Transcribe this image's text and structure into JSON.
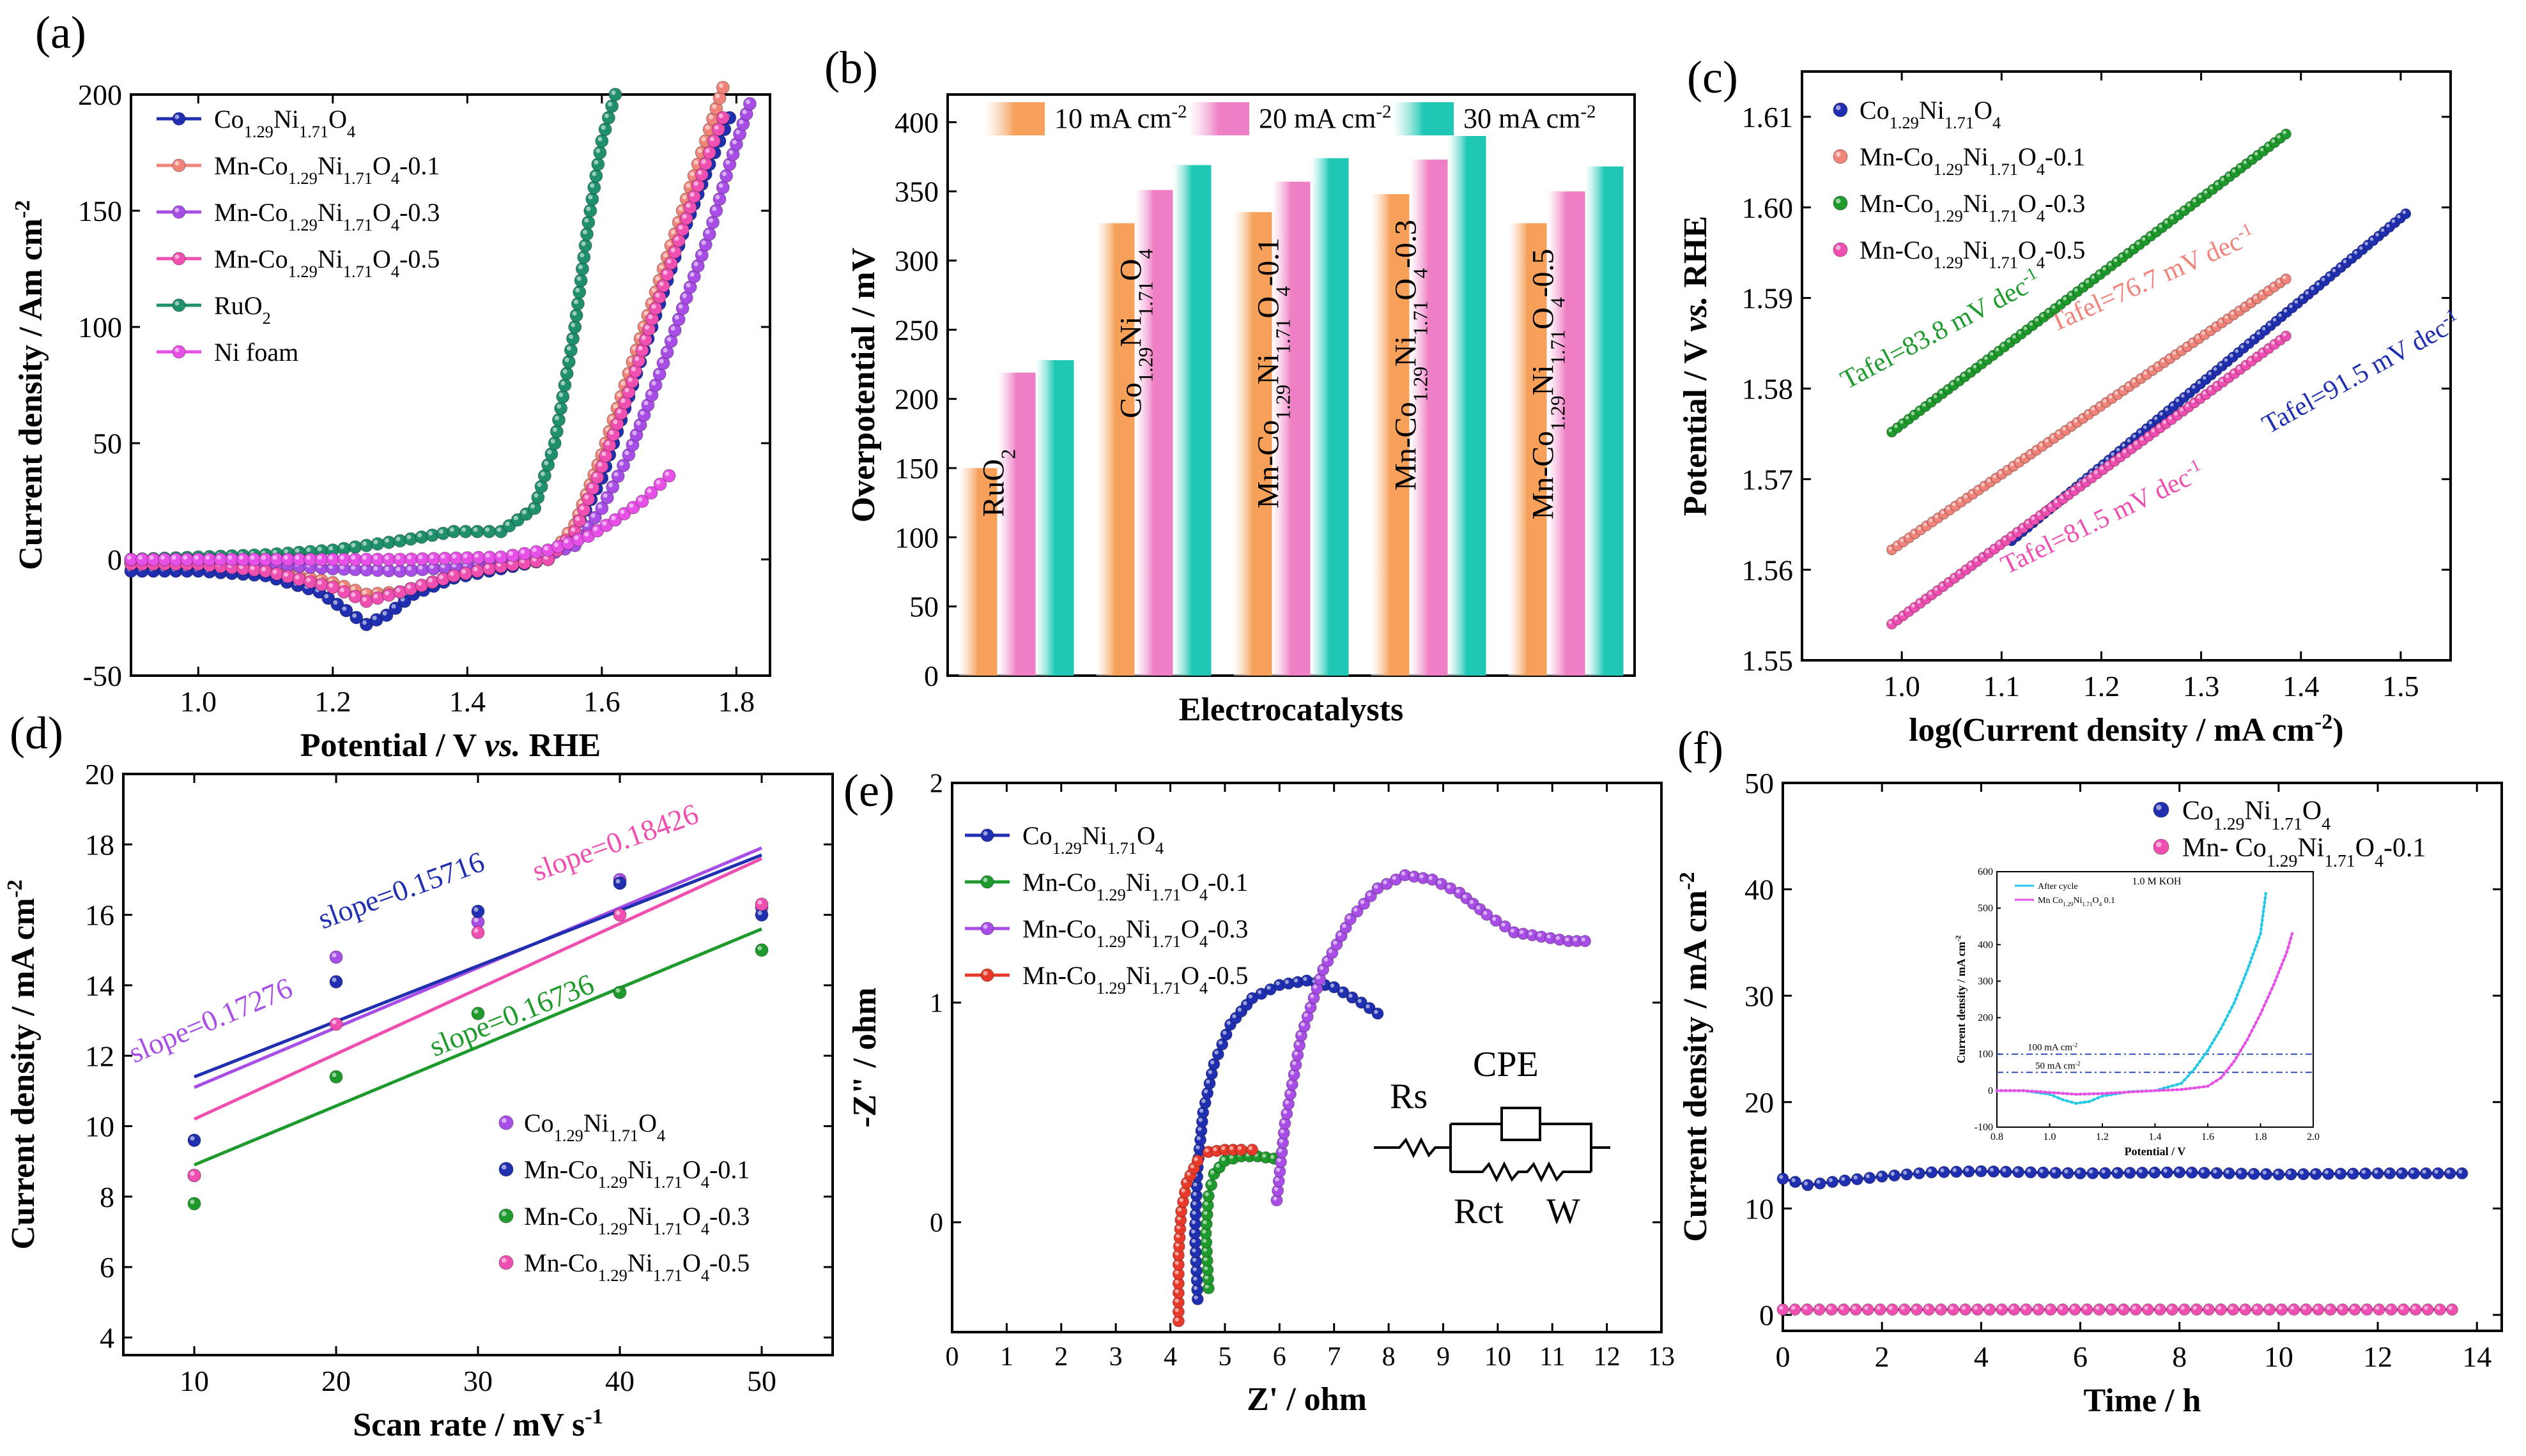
{
  "figure": {
    "panel_labels": [
      "(a)",
      "(b)",
      "(c)",
      "(d)",
      "(e)",
      "(f)"
    ]
  },
  "colors": {
    "navy": "#1f2fb0",
    "salmon": "#f0837a",
    "violet": "#a84ee6",
    "pink": "#ee4fb0",
    "teal": "#1f8f6e",
    "magenta": "#e650e6",
    "green": "#1e9a2c",
    "red": "#e83a2a",
    "cyan": "#25c9e6",
    "bar10": "#f6a05a",
    "bar20": "#ef7fc4",
    "bar30": "#1ec8b4"
  },
  "chart_data": [
    {
      "id": "a",
      "type": "line",
      "title": "(a)",
      "xlabel": "Potential / V vs. RHE",
      "ylabel": "Current density / Am cm-2",
      "xlim": [
        0.9,
        1.85
      ],
      "ylim": [
        -50,
        200
      ],
      "xticks": [
        1.0,
        1.2,
        1.4,
        1.6,
        1.8
      ],
      "yticks": [
        -50,
        0,
        50,
        100,
        150,
        200
      ],
      "legend_position": "top-left",
      "series": [
        {
          "name": "Co1.29Ni1.71O4",
          "color": "navy",
          "x": [
            0.9,
            1.0,
            1.1,
            1.18,
            1.22,
            1.25,
            1.28,
            1.32,
            1.38,
            1.45,
            1.52,
            1.56,
            1.6,
            1.64,
            1.68,
            1.72,
            1.76,
            1.79
          ],
          "y": [
            -5,
            -5,
            -7,
            -14,
            -22,
            -28,
            -24,
            -15,
            -8,
            -4,
            0,
            12,
            35,
            70,
            105,
            140,
            170,
            190
          ]
        },
        {
          "name": "Mn-Co1.29Ni1.71O4-0.1",
          "color": "salmon",
          "x": [
            0.9,
            1.0,
            1.1,
            1.2,
            1.25,
            1.3,
            1.38,
            1.45,
            1.52,
            1.56,
            1.6,
            1.64,
            1.68,
            1.72,
            1.76,
            1.78
          ],
          "y": [
            -2,
            -2,
            -4,
            -10,
            -15,
            -14,
            -7,
            -3,
            0,
            15,
            45,
            80,
            115,
            150,
            185,
            203
          ]
        },
        {
          "name": "Mn-Co1.29Ni1.71O4-0.3",
          "color": "violet",
          "x": [
            0.9,
            1.0,
            1.1,
            1.2,
            1.3,
            1.4,
            1.5,
            1.56,
            1.6,
            1.64,
            1.68,
            1.72,
            1.76,
            1.79,
            1.82
          ],
          "y": [
            -1,
            -1,
            -2,
            -4,
            -5,
            -3,
            0,
            6,
            22,
            45,
            75,
            108,
            140,
            170,
            196
          ]
        },
        {
          "name": "Mn-Co1.29Ni1.71O4-0.5",
          "color": "pink",
          "x": [
            0.9,
            1.0,
            1.1,
            1.2,
            1.25,
            1.3,
            1.38,
            1.45,
            1.52,
            1.56,
            1.6,
            1.64,
            1.68,
            1.72,
            1.76,
            1.78
          ],
          "y": [
            -2,
            -2,
            -5,
            -12,
            -18,
            -14,
            -7,
            -3,
            0,
            12,
            40,
            72,
            108,
            142,
            175,
            190
          ]
        },
        {
          "name": "RuO2",
          "color": "teal",
          "x": [
            0.9,
            1.0,
            1.1,
            1.2,
            1.3,
            1.38,
            1.45,
            1.5,
            1.53,
            1.56,
            1.58,
            1.6,
            1.62
          ],
          "y": [
            0,
            1,
            2,
            4,
            8,
            12,
            12,
            22,
            50,
            100,
            145,
            180,
            200
          ]
        },
        {
          "name": "Ni foam",
          "color": "magenta",
          "x": [
            0.9,
            1.1,
            1.3,
            1.45,
            1.52,
            1.58,
            1.62,
            1.66,
            1.7
          ],
          "y": [
            0,
            0,
            0,
            1,
            4,
            10,
            17,
            25,
            36
          ]
        }
      ]
    },
    {
      "id": "b",
      "type": "bar",
      "title": "(b)",
      "xlabel": "Electrocatalysts",
      "ylabel": "Overpotential / mV",
      "ylim": [
        0,
        420
      ],
      "yticks": [
        0,
        50,
        100,
        150,
        200,
        250,
        300,
        350,
        400
      ],
      "categories": [
        "RuO2",
        "Co1.29Ni1.71O4",
        "Mn-Co1.29Ni1.71O4-0.1",
        "Mn-Co1.29Ni1.71O4-0.3",
        "Mn-Co1.29Ni1.71O4-0.5"
      ],
      "legend_position": "top",
      "series": [
        {
          "name": "10 mA cm-2",
          "color": "bar10",
          "values": [
            150,
            327,
            335,
            348,
            327
          ]
        },
        {
          "name": "20 mA cm-2",
          "color": "bar20",
          "values": [
            219,
            351,
            357,
            373,
            350
          ]
        },
        {
          "name": "30 mA cm-2",
          "color": "bar30",
          "values": [
            228,
            369,
            374,
            390,
            368
          ]
        }
      ]
    },
    {
      "id": "c",
      "type": "scatter",
      "title": "(c)",
      "xlabel": "log(Current density / mA cm-2)",
      "ylabel": "Potential / V vs. RHE",
      "xlim": [
        0.9,
        1.55
      ],
      "ylim": [
        1.55,
        1.615
      ],
      "xticks": [
        1.0,
        1.1,
        1.2,
        1.3,
        1.4,
        1.5
      ],
      "yticks": [
        1.55,
        1.56,
        1.57,
        1.58,
        1.59,
        1.6,
        1.61
      ],
      "legend_position": "top-left",
      "series": [
        {
          "name": "Co1.29Ni1.71O4",
          "color": "navy",
          "x": [
            1.11,
            1.505
          ],
          "y": [
            1.5632,
            1.5993
          ],
          "tafel": "Tafel=91.5 mV dec-1"
        },
        {
          "name": "Mn-Co1.29Ni1.71O4-0.1",
          "color": "salmon",
          "x": [
            0.99,
            1.385
          ],
          "y": [
            1.5622,
            1.5921
          ],
          "tafel": "Tafel=76.7 mV dec-1"
        },
        {
          "name": "Mn-Co1.29Ni1.71O4-0.3",
          "color": "green",
          "x": [
            0.99,
            1.385
          ],
          "y": [
            1.5752,
            1.6081
          ],
          "tafel": "Tafel=83.8 mV dec-1"
        },
        {
          "name": "Mn-Co1.29Ni1.71O4-0.5",
          "color": "pink",
          "x": [
            0.99,
            1.385
          ],
          "y": [
            1.554,
            1.5858
          ],
          "tafel": "Tafel=81.5 mV dec-1"
        }
      ]
    },
    {
      "id": "d",
      "type": "scatter",
      "title": "(d)",
      "xlabel": "Scan rate / mV s-1",
      "ylabel": "Current density / mA cm-2",
      "xlim": [
        5,
        55
      ],
      "ylim": [
        3.5,
        20
      ],
      "xticks": [
        10,
        20,
        30,
        40,
        50
      ],
      "yticks": [
        4,
        6,
        8,
        10,
        12,
        14,
        16,
        18,
        20
      ],
      "legend_position": "bottom-right",
      "series": [
        {
          "name": "Co1.29Ni1.71O4",
          "color": "violet",
          "x": [
            10,
            20,
            30,
            40,
            50
          ],
          "y": [
            8.6,
            14.8,
            15.8,
            17.0,
            16.2
          ],
          "fit": [
            11.1,
            17.9
          ],
          "slope": "slope=0.17276"
        },
        {
          "name": "Mn-Co1.29Ni1.71O4-0.1",
          "color": "navy",
          "x": [
            10,
            20,
            30,
            40,
            50
          ],
          "y": [
            9.6,
            14.1,
            16.1,
            16.9,
            16.0
          ],
          "fit": [
            11.4,
            17.7
          ],
          "slope": "slope=0.15716"
        },
        {
          "name": "Mn-Co1.29Ni1.71O4-0.3",
          "color": "green",
          "x": [
            10,
            20,
            30,
            40,
            50
          ],
          "y": [
            7.8,
            11.4,
            13.2,
            13.8,
            15.0
          ],
          "fit": [
            8.9,
            15.6
          ],
          "slope": "slope=0.16736"
        },
        {
          "name": "Mn-Co1.29Ni1.71O4-0.5",
          "color": "pink",
          "x": [
            10,
            20,
            30,
            40,
            50
          ],
          "y": [
            8.6,
            12.9,
            15.5,
            16.0,
            16.3
          ],
          "fit": [
            10.2,
            17.6
          ],
          "slope": "slope=0.18426"
        }
      ]
    },
    {
      "id": "e",
      "type": "line",
      "title": "(e)",
      "xlabel": "Z' / ohm",
      "ylabel": "-Z\" / ohm",
      "xlim": [
        0,
        13
      ],
      "ylim": [
        -0.5,
        2
      ],
      "xticks": [
        0,
        1,
        2,
        3,
        4,
        5,
        6,
        7,
        8,
        9,
        10,
        11,
        12,
        13
      ],
      "yticks": [
        0,
        1,
        2
      ],
      "legend_position": "top-left",
      "circuit": {
        "labels": [
          "Rs",
          "CPE",
          "Rct",
          "W"
        ]
      },
      "series": [
        {
          "name": "Co1.29Ni1.71O4",
          "color": "navy",
          "x": [
            4.5,
            4.45,
            4.5,
            4.6,
            4.8,
            5.1,
            5.5,
            6.0,
            6.5,
            7.0,
            7.5,
            7.8
          ],
          "y": [
            -0.35,
            -0.05,
            0.25,
            0.5,
            0.72,
            0.9,
            1.02,
            1.08,
            1.1,
            1.07,
            1.0,
            0.95
          ]
        },
        {
          "name": "Mn-Co1.29Ni1.71O4-0.1",
          "color": "green",
          "x": [
            4.7,
            4.65,
            4.7,
            4.8,
            5.0,
            5.3,
            5.6,
            5.9
          ],
          "y": [
            -0.3,
            -0.05,
            0.12,
            0.22,
            0.28,
            0.3,
            0.3,
            0.29
          ]
        },
        {
          "name": "Mn-Co1.29Ni1.71O4-0.3",
          "color": "violet",
          "x": [
            5.95,
            6.1,
            6.4,
            6.8,
            7.3,
            7.8,
            8.3,
            8.8,
            9.3,
            9.8,
            10.3,
            10.8,
            11.3,
            11.6
          ],
          "y": [
            0.1,
            0.45,
            0.85,
            1.15,
            1.38,
            1.52,
            1.58,
            1.56,
            1.5,
            1.4,
            1.32,
            1.3,
            1.28,
            1.28
          ]
        },
        {
          "name": "Mn-Co1.29Ni1.71O4-0.5",
          "color": "red",
          "x": [
            4.15,
            4.15,
            4.2,
            4.3,
            4.5,
            4.7,
            5.0,
            5.3,
            5.5
          ],
          "y": [
            -0.45,
            -0.15,
            0.05,
            0.18,
            0.28,
            0.32,
            0.33,
            0.33,
            0.33
          ]
        }
      ]
    },
    {
      "id": "f",
      "type": "line",
      "title": "(f)",
      "xlabel": "Time / h",
      "ylabel": "Current density / mA cm-2",
      "xlim": [
        0,
        14.5
      ],
      "ylim": [
        -1.5,
        50
      ],
      "xticks": [
        0,
        2,
        4,
        6,
        8,
        10,
        12,
        14
      ],
      "yticks": [
        0,
        10,
        20,
        30,
        40,
        50
      ],
      "legend_position": "top-right",
      "series": [
        {
          "name": "Co1.29Ni1.71O4",
          "color": "navy",
          "x": [
            0,
            0.5,
            1,
            2,
            3,
            4,
            6,
            8,
            10,
            12,
            13.7
          ],
          "y": [
            12.8,
            12.2,
            12.5,
            13.0,
            13.4,
            13.5,
            13.3,
            13.4,
            13.2,
            13.3,
            13.3
          ]
        },
        {
          "name": "Mn- Co1.29Ni1.71O4-0.1",
          "color": "pink",
          "x": [
            0,
            13.5
          ],
          "y": [
            0.5,
            0.5
          ]
        }
      ],
      "inset": {
        "type": "line",
        "xlabel": "Potential / V",
        "ylabel": "Current density / mA cm-2",
        "xlim": [
          0.8,
          2.0
        ],
        "ylim": [
          -100,
          600
        ],
        "xticks": [
          0.8,
          1.0,
          1.2,
          1.4,
          1.6,
          1.8,
          2.0
        ],
        "yticks": [
          -100,
          0,
          100,
          200,
          300,
          400,
          500,
          600
        ],
        "annotations": [
          "1.0 M KOH",
          "100 mA cm-2",
          "50 mA cm-2"
        ],
        "reference_lines": [
          100,
          50
        ],
        "series": [
          {
            "name": "After cycle",
            "color": "cyan",
            "x": [
              0.8,
              0.9,
              1.0,
              1.05,
              1.1,
              1.15,
              1.2,
              1.3,
              1.4,
              1.5,
              1.55,
              1.6,
              1.65,
              1.7,
              1.75,
              1.8,
              1.82
            ],
            "y": [
              0,
              0,
              -10,
              -25,
              -35,
              -30,
              -15,
              -3,
              0,
              20,
              60,
              110,
              170,
              240,
              330,
              430,
              540
            ]
          },
          {
            "name": "Mn Co1.29Ni1.71O4 0.1",
            "color": "magenta",
            "x": [
              0.8,
              0.9,
              1.0,
              1.1,
              1.2,
              1.3,
              1.4,
              1.5,
              1.6,
              1.65,
              1.7,
              1.75,
              1.8,
              1.85,
              1.9,
              1.92
            ],
            "y": [
              0,
              0,
              -5,
              -10,
              -8,
              -4,
              0,
              3,
              12,
              35,
              80,
              140,
              210,
              290,
              380,
              430
            ]
          }
        ]
      }
    }
  ]
}
